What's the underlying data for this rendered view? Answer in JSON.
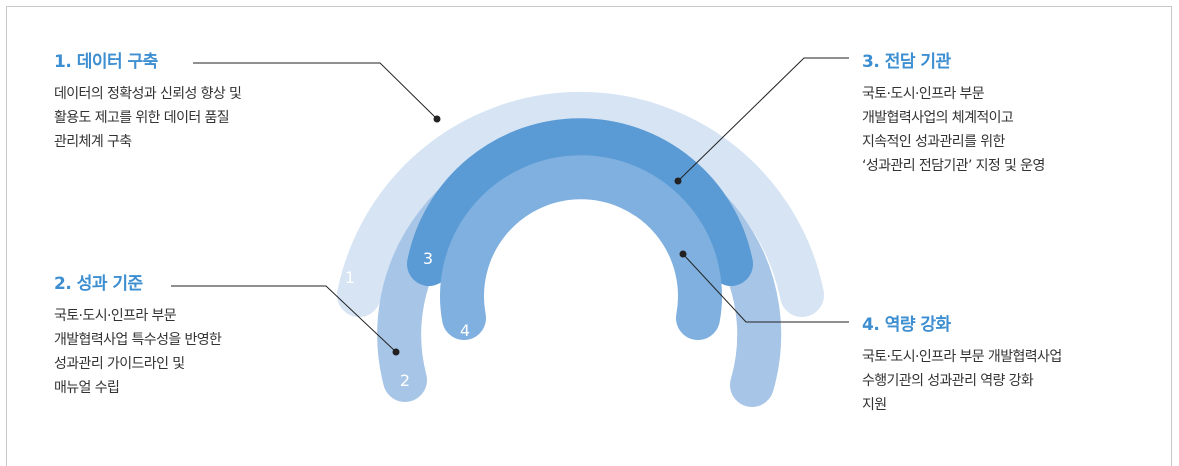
{
  "items": [
    {
      "title": "1. 데이터 구축",
      "body": "데이터의 정확성과 신뢰성 향상 및\n활용도 제고를 위한 데이터 품질\n관리체계 구축",
      "number": "1"
    },
    {
      "title": "2. 성과 기준",
      "body": "국토·도시·인프라 부문\n개발협력사업 특수성을 반영한\n성과관리 가이드라인 및\n매뉴얼 수립",
      "number": "2"
    },
    {
      "title": "3. 전담 기관",
      "body": "국토·도시·인프라 부문\n개발협력사업의 체계적이고\n지속적인 성과관리를 위한\n‘성과관리 전담기관’ 지정 및 운영",
      "number": "3"
    },
    {
      "title": "4. 역량 강화",
      "body": "국토·도시·인프라 부문 개발협력사업\n수행기관의 성과관리 역량 강화\n지원",
      "number": "4"
    }
  ],
  "colors": {
    "arc1": "#d6e4f4",
    "arc2": "#a7c5e6",
    "arc3": "#5b9bd5",
    "arc4": "#7fb0df",
    "title": "#3d8fd1",
    "leader": "#222222"
  }
}
